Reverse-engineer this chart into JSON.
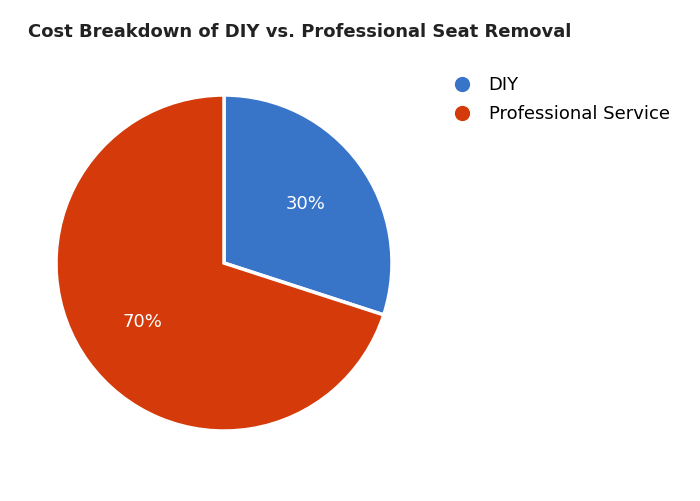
{
  "title": "Cost Breakdown of DIY vs. Professional Seat Removal",
  "slices": [
    30,
    70
  ],
  "labels": [
    "DIY",
    "Professional Service"
  ],
  "colors": [
    "#3874C8",
    "#D43A0A"
  ],
  "wedge_edge_color": "white",
  "wedge_linewidth": 2.5,
  "background_color": "#ffffff",
  "title_fontsize": 13,
  "title_fontweight": "bold",
  "autopct_fontsize": 13,
  "autopct_color": "white",
  "legend_fontsize": 13,
  "startangle": 90,
  "pctdistance": 0.6
}
